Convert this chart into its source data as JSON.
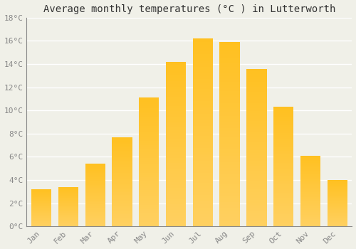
{
  "months": [
    "Jan",
    "Feb",
    "Mar",
    "Apr",
    "May",
    "Jun",
    "Jul",
    "Aug",
    "Sep",
    "Oct",
    "Nov",
    "Dec"
  ],
  "temperatures": [
    3.2,
    3.4,
    5.4,
    7.7,
    11.1,
    14.2,
    16.2,
    15.9,
    13.6,
    10.3,
    6.1,
    4.0
  ],
  "bar_color_top": "#FFC020",
  "bar_color_bottom": "#FFD060",
  "title": "Average monthly temperatures (°C ) in Lutterworth",
  "ylim": [
    0,
    18
  ],
  "yticks": [
    0,
    2,
    4,
    6,
    8,
    10,
    12,
    14,
    16,
    18
  ],
  "ytick_labels": [
    "0°C",
    "2°C",
    "4°C",
    "6°C",
    "8°C",
    "10°C",
    "12°C",
    "14°C",
    "16°C",
    "18°C"
  ],
  "background_color": "#f0f0e8",
  "grid_color": "#ffffff",
  "title_fontsize": 10,
  "tick_fontsize": 8,
  "tick_color": "#888888",
  "bar_width": 0.75,
  "font_family": "monospace"
}
